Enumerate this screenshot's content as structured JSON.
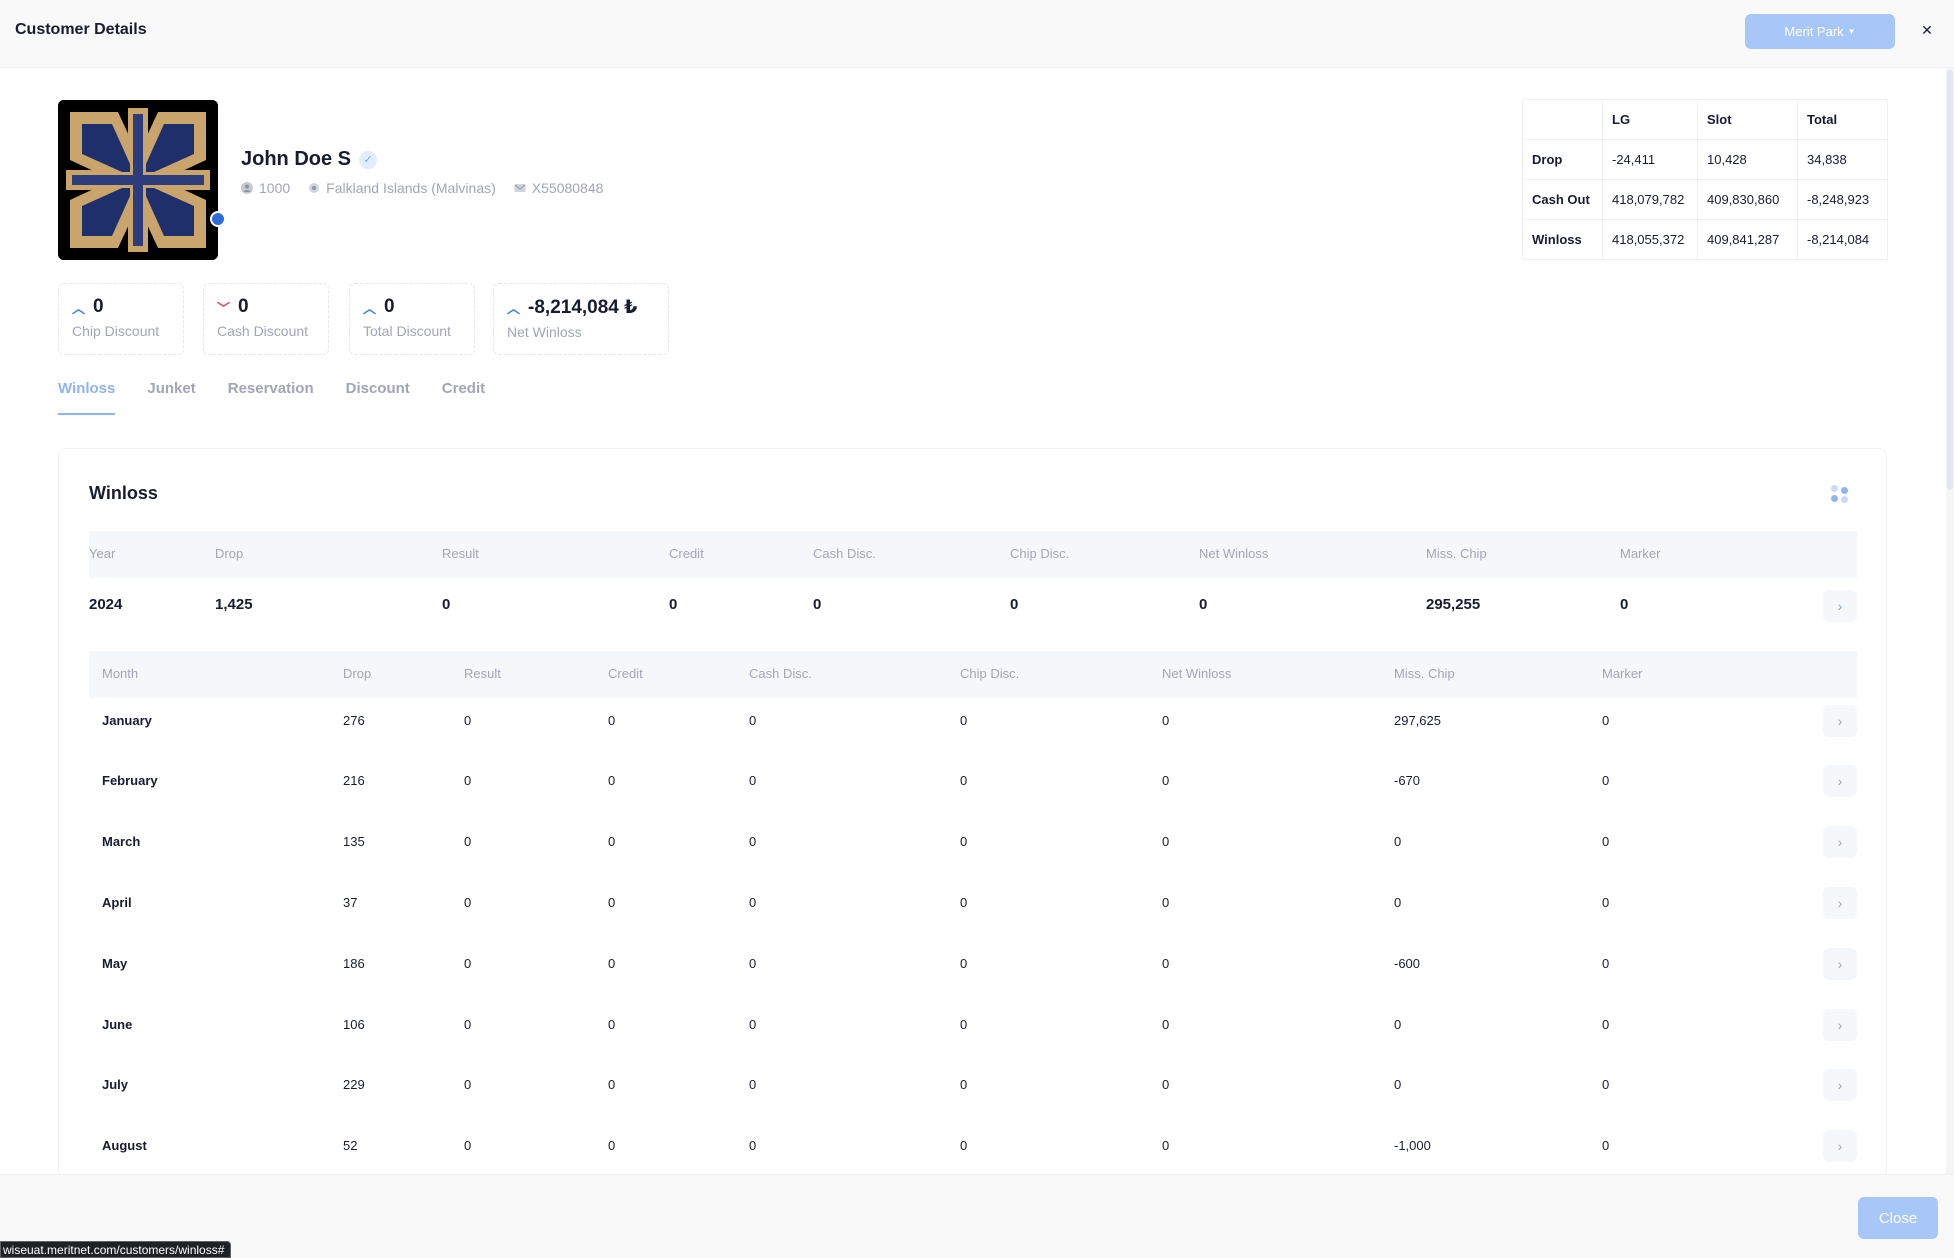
{
  "header": {
    "title": "Customer Details",
    "venue_label": "Merit Park",
    "close_icon": "close-icon"
  },
  "customer": {
    "name": "John Doe S",
    "id": "1000",
    "country": "Falkland Islands (Malvinas)",
    "passport": "X55080848",
    "online": true,
    "icons": [
      "user-icon",
      "location-icon",
      "id-card-icon"
    ]
  },
  "stats": [
    {
      "value": "0",
      "label": "Chip Discount",
      "trend": "up"
    },
    {
      "value": "0",
      "label": "Cash Discount",
      "trend": "down"
    },
    {
      "value": "0",
      "label": "Total Discount",
      "trend": "up"
    },
    {
      "value": "-8,214,084 ₺",
      "label": "Net Winloss",
      "trend": "up"
    }
  ],
  "summary": {
    "columns": [
      "",
      "LG",
      "Slot",
      "Total"
    ],
    "rows": [
      [
        "Drop",
        "-24,411",
        "10,428",
        "34,838"
      ],
      [
        "Cash Out",
        "418,079,782",
        "409,830,860",
        "-8,248,923"
      ],
      [
        "Winloss",
        "418,055,372",
        "409,841,287",
        "-8,214,084"
      ]
    ]
  },
  "tabs": [
    "Winloss",
    "Junket",
    "Reservation",
    "Discount",
    "Credit"
  ],
  "active_tab": "Winloss",
  "winloss": {
    "title": "Winloss",
    "year_columns": [
      "Year",
      "Drop",
      "Result",
      "Credit",
      "Cash Disc.",
      "Chip Disc.",
      "Net Winloss",
      "Miss. Chip",
      "Marker"
    ],
    "year_row": [
      "2024",
      "1,425",
      "0",
      "0",
      "0",
      "0",
      "0",
      "295,255",
      "0"
    ],
    "month_columns": [
      "Month",
      "Drop",
      "Result",
      "Credit",
      "Cash Disc.",
      "Chip Disc.",
      "Net Winloss",
      "Miss. Chip",
      "Marker"
    ],
    "months": [
      [
        "January",
        "276",
        "0",
        "0",
        "0",
        "0",
        "0",
        "297,625",
        "0"
      ],
      [
        "February",
        "216",
        "0",
        "0",
        "0",
        "0",
        "0",
        "-670",
        "0"
      ],
      [
        "March",
        "135",
        "0",
        "0",
        "0",
        "0",
        "0",
        "0",
        "0"
      ],
      [
        "April",
        "37",
        "0",
        "0",
        "0",
        "0",
        "0",
        "0",
        "0"
      ],
      [
        "May",
        "186",
        "0",
        "0",
        "0",
        "0",
        "0",
        "-600",
        "0"
      ],
      [
        "June",
        "106",
        "0",
        "0",
        "0",
        "0",
        "0",
        "0",
        "0"
      ],
      [
        "July",
        "229",
        "0",
        "0",
        "0",
        "0",
        "0",
        "0",
        "0"
      ],
      [
        "August",
        "52",
        "0",
        "0",
        "0",
        "0",
        "0",
        "-1,000",
        "0"
      ]
    ]
  },
  "footer": {
    "close_label": "Close"
  },
  "status_url": "wiseuat.meritnet.com/customers/winloss#",
  "colors": {
    "primary_light": "#a7c7f9",
    "accent": "#2f6bd9",
    "trend_up": "#3e7ee0",
    "trend_down": "#e2435e"
  }
}
